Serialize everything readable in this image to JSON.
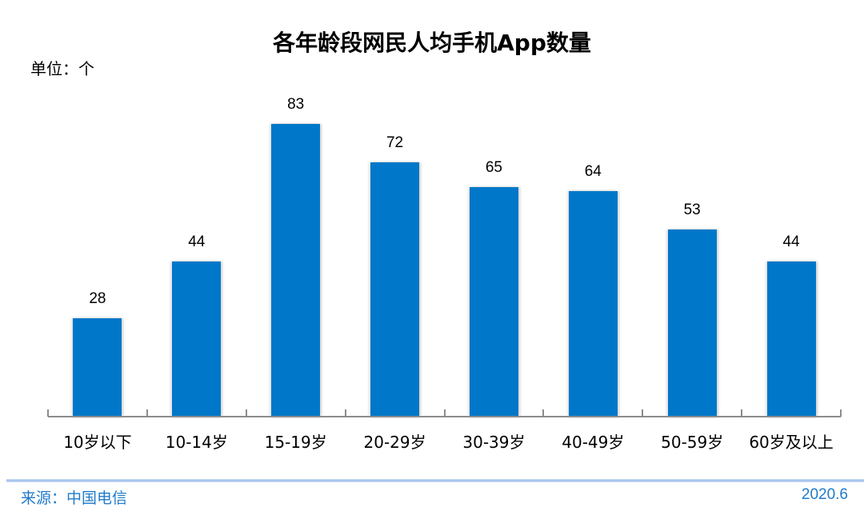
{
  "title": "各年龄段网民人均手机App数量",
  "unit_label": "单位：个",
  "footer": {
    "source": "来源：中国电信",
    "date": "2020.6"
  },
  "colors": {
    "bar": "#0077c8",
    "axis": "#8c8c8c",
    "footer_text": "#1f7ac9",
    "separator": "#9dbde8"
  },
  "chart_data": {
    "type": "bar",
    "title": "各年龄段网民人均手机App数量",
    "xlabel": "",
    "ylabel": "单位：个",
    "categories": [
      "10岁以下",
      "10-14岁",
      "15-19岁",
      "20-29岁",
      "30-39岁",
      "40-49岁",
      "50-59岁",
      "60岁及以上"
    ],
    "values": [
      28,
      44,
      83,
      72,
      65,
      64,
      53,
      44
    ],
    "data_labels": [
      "28",
      "44",
      "83",
      "72",
      "65",
      "64",
      "53",
      "44"
    ],
    "ylim": [
      0,
      95
    ],
    "grid": false,
    "legend": null,
    "annotations": [
      "来源：中国电信",
      "2020.6"
    ]
  }
}
